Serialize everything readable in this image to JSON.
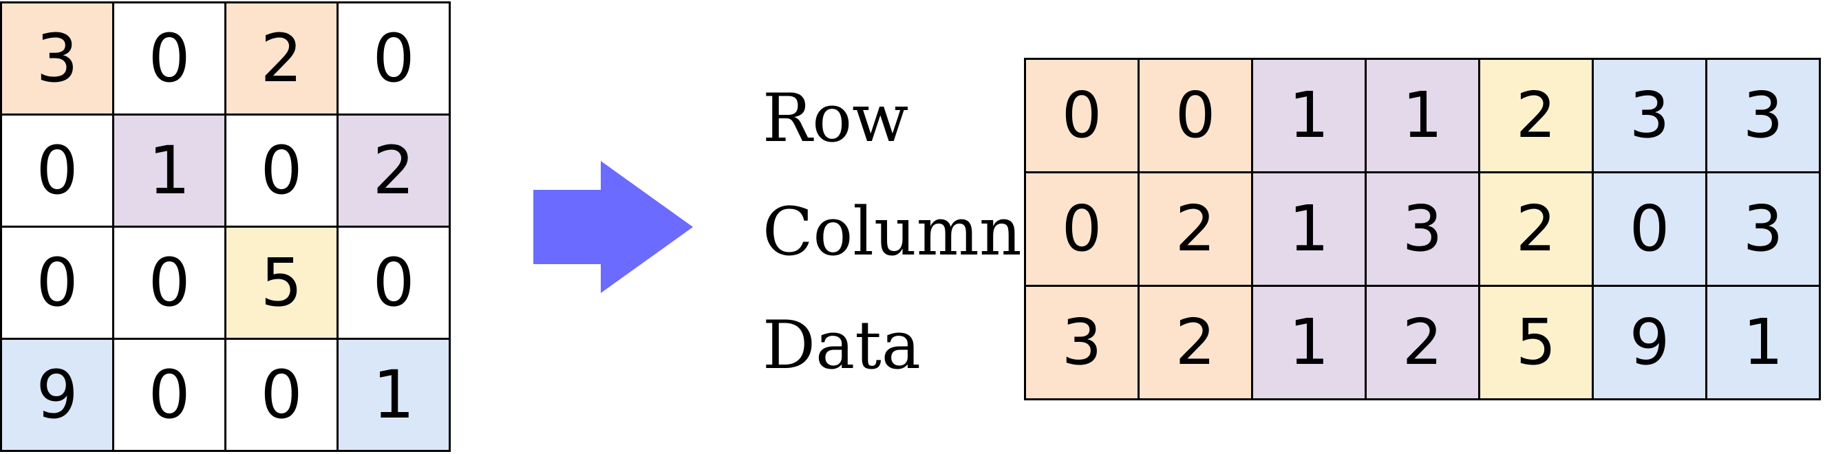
{
  "matrix": {
    "rows": [
      [
        {
          "value": "3",
          "color": "#fde3cc"
        },
        {
          "value": "0",
          "color": "#ffffff"
        },
        {
          "value": "2",
          "color": "#fde3cc"
        },
        {
          "value": "0",
          "color": "#ffffff"
        }
      ],
      [
        {
          "value": "0",
          "color": "#ffffff"
        },
        {
          "value": "1",
          "color": "#e3d9ea"
        },
        {
          "value": "0",
          "color": "#ffffff"
        },
        {
          "value": "2",
          "color": "#e3d9ea"
        }
      ],
      [
        {
          "value": "0",
          "color": "#ffffff"
        },
        {
          "value": "0",
          "color": "#ffffff"
        },
        {
          "value": "5",
          "color": "#fdf1cc"
        },
        {
          "value": "0",
          "color": "#ffffff"
        }
      ],
      [
        {
          "value": "9",
          "color": "#dae7f9"
        },
        {
          "value": "0",
          "color": "#ffffff"
        },
        {
          "value": "0",
          "color": "#ffffff"
        },
        {
          "value": "1",
          "color": "#dae7f9"
        }
      ]
    ]
  },
  "arrow": {
    "icon": "right-arrow-icon",
    "color": "#6b6bff"
  },
  "csr": {
    "labels": [
      "Row",
      "Column",
      "Data"
    ],
    "column_colors": [
      "#fde3cc",
      "#fde3cc",
      "#e3d9ea",
      "#e3d9ea",
      "#fdf1cc",
      "#dae7f9",
      "#dae7f9"
    ],
    "rows": [
      [
        "0",
        "0",
        "1",
        "1",
        "2",
        "3",
        "3"
      ],
      [
        "0",
        "2",
        "1",
        "3",
        "2",
        "0",
        "3"
      ],
      [
        "3",
        "2",
        "1",
        "2",
        "5",
        "9",
        "1"
      ]
    ]
  }
}
